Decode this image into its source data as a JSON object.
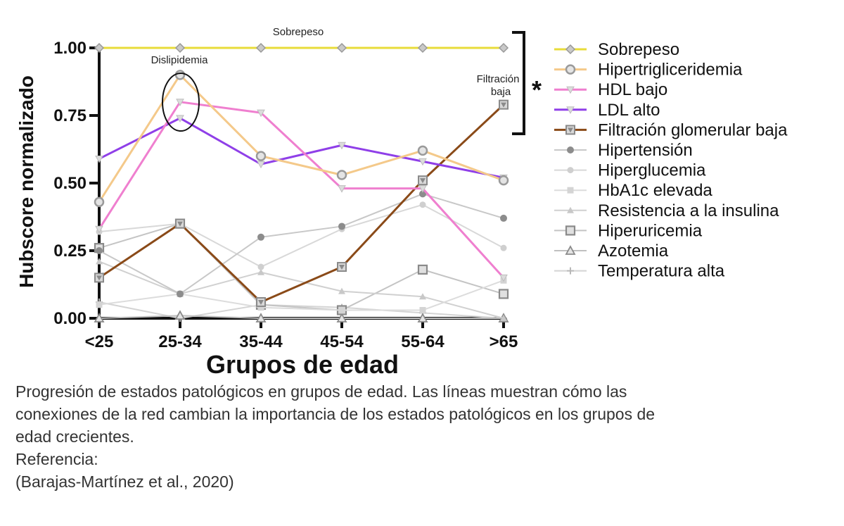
{
  "chart_data": {
    "type": "line",
    "xlabel": "Grupos de edad",
    "ylabel": "Hubscore normalizado",
    "categories": [
      "<25",
      "25-34",
      "35-44",
      "45-54",
      "55-64",
      ">65"
    ],
    "ylim": [
      0,
      1
    ],
    "yticks": [
      "0.00",
      "0.25",
      "0.50",
      "0.75",
      "1.00"
    ],
    "legend_position": "right",
    "series": [
      {
        "name": "Sobrepeso",
        "color": "#e8dc3a",
        "marker": "diamond",
        "values": [
          1.0,
          1.0,
          1.0,
          1.0,
          1.0,
          1.0
        ]
      },
      {
        "name": "Hipertrigliceridemia",
        "color": "#f4c98a",
        "marker": "circle-open",
        "values": [
          0.43,
          0.9,
          0.6,
          0.53,
          0.62,
          0.51
        ]
      },
      {
        "name": "HDL bajo",
        "color": "#ef7fcf",
        "marker": "triangle-down",
        "values": [
          0.33,
          0.8,
          0.76,
          0.48,
          0.48,
          0.15
        ]
      },
      {
        "name": "LDL alto",
        "color": "#8f3fe8",
        "marker": "triangle-down",
        "values": [
          0.59,
          0.74,
          0.57,
          0.64,
          0.58,
          0.52
        ]
      },
      {
        "name": "Filtración glomerular baja",
        "color": "#8a4a18",
        "marker": "triangle-down-square",
        "values": [
          0.15,
          0.35,
          0.06,
          0.19,
          0.51,
          0.79
        ]
      },
      {
        "name": "Hipertensión",
        "color": "#c8c8c8",
        "marker": "dot-dark",
        "values": [
          0.25,
          0.09,
          0.3,
          0.34,
          0.46,
          0.37
        ]
      },
      {
        "name": "Hiperglucemia",
        "color": "#d8d8d8",
        "marker": "dot-light",
        "values": [
          0.32,
          0.35,
          0.19,
          0.33,
          0.42,
          0.26
        ]
      },
      {
        "name": "HbA1c elevada",
        "color": "#dcdcdc",
        "marker": "square",
        "values": [
          0.05,
          0.09,
          0.04,
          0.03,
          0.03,
          0.14
        ]
      },
      {
        "name": "Resistencia a la insulina",
        "color": "#d0d0d0",
        "marker": "triangle",
        "values": [
          0.21,
          0.09,
          0.17,
          0.1,
          0.08,
          0.0
        ]
      },
      {
        "name": "Hiperuricemia",
        "color": "#c4c4c4",
        "marker": "square-open",
        "values": [
          0.26,
          0.35,
          0.05,
          0.03,
          0.18,
          0.09
        ]
      },
      {
        "name": "Azotemia",
        "color": "#c0c0c0",
        "marker": "triangle-open",
        "values": [
          0.0,
          0.01,
          0.0,
          0.0,
          0.0,
          0.0
        ]
      },
      {
        "name": "Temperatura alta",
        "color": "#d4d4d4",
        "marker": "cross",
        "values": [
          0.06,
          0.0,
          0.05,
          0.04,
          0.02,
          0.0
        ]
      }
    ],
    "annotations": [
      {
        "text": "Sobrepeso",
        "category": "35-44",
        "value": 1.0
      },
      {
        "text": "Dislipidemia",
        "category": "25-34",
        "value": 0.9
      },
      {
        "text": "Filtración baja",
        "category": ">65",
        "value": 0.79
      },
      {
        "text": "*",
        "category": ">65",
        "value": 0.86
      }
    ]
  },
  "caption": {
    "line1": "Progresión de estados patológicos en grupos de edad. Las líneas muestran cómo las",
    "line2": "conexiones de la red cambian la importancia de los estados patológicos en los grupos de",
    "line3": "edad crecientes.",
    "reference_label": "Referencia:",
    "reference": "(Barajas-Martínez et al., 2020)"
  }
}
